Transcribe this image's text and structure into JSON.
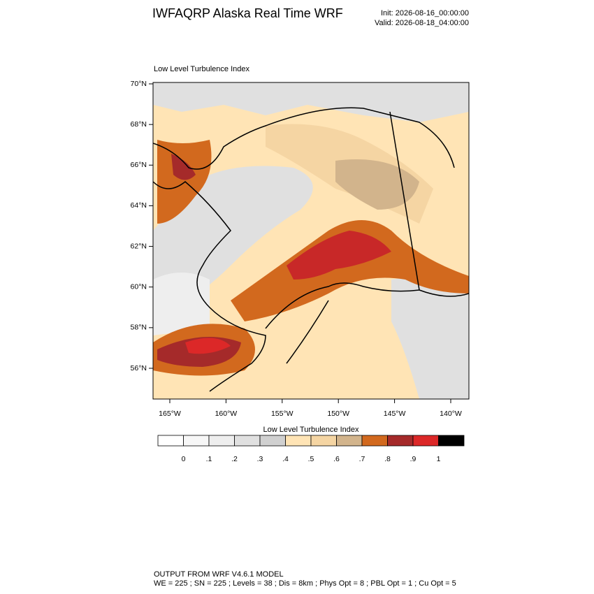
{
  "header": {
    "title": "IWFAQRP Alaska Real Time WRF",
    "init": "Init: 2026-08-16_00:00:00",
    "valid": "Valid: 2026-08-18_04:00:00"
  },
  "map": {
    "title": "Low Level Turbulence Index",
    "lat_labels": [
      "70°N",
      "68°N",
      "66°N",
      "64°N",
      "62°N",
      "60°N",
      "58°N",
      "56°N"
    ],
    "lon_labels": [
      "165°W",
      "160°W",
      "155°W",
      "150°W",
      "145°W",
      "140°W"
    ]
  },
  "colorbar": {
    "title": "Low Level Turbulence Index",
    "colors": [
      "#ffffff",
      "#f7f7f7",
      "#eeeeee",
      "#e0e0e0",
      "#d0d0d0",
      "#ffe4b5",
      "#f5d5a3",
      "#d2b48c",
      "#d2691e",
      "#a52a2a",
      "#dc2828",
      "#000000"
    ],
    "labels": [
      "0",
      ".1",
      ".2",
      ".3",
      ".4",
      ".5",
      ".6",
      ".7",
      ".8",
      ".9",
      "1"
    ]
  },
  "footer": {
    "line1": "OUTPUT FROM WRF V4.6.1 MODEL",
    "line2": "WE = 225 ; SN = 225 ; Levels = 38 ; Dis = 8km ; Phys Opt = 8 ; PBL Opt = 1 ; Cu Opt = 5"
  }
}
